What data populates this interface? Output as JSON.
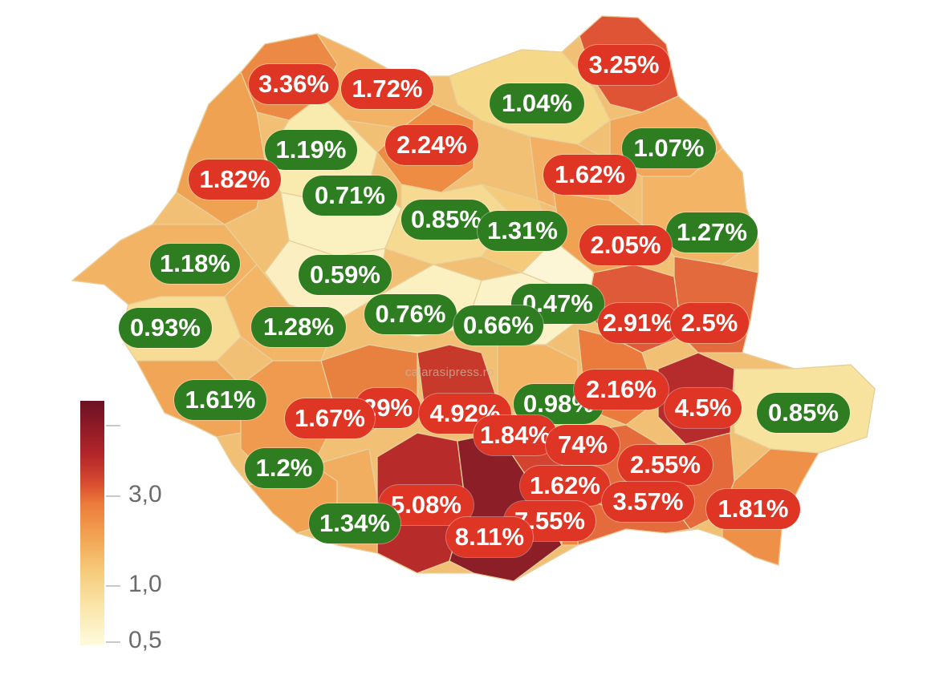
{
  "watermark": "calarasipress.ro",
  "legend": {
    "ticks": [
      "3,0",
      "1,0",
      "0,5"
    ],
    "colors": [
      "#fffbdf",
      "#f6cb7c",
      "#ec7a3b",
      "#b3262a",
      "#6b1224"
    ]
  },
  "counties": [
    {
      "label": "3.36%",
      "value": 3.36,
      "status": "red"
    },
    {
      "label": "1.72%",
      "value": 1.72,
      "status": "red"
    },
    {
      "label": "3.25%",
      "value": 3.25,
      "status": "red"
    },
    {
      "label": "1.04%",
      "value": 1.04,
      "status": "green"
    },
    {
      "label": "1.19%",
      "value": 1.19,
      "status": "green"
    },
    {
      "label": "2.24%",
      "value": 2.24,
      "status": "red"
    },
    {
      "label": "1.07%",
      "value": 1.07,
      "status": "green"
    },
    {
      "label": "1.82%",
      "value": 1.82,
      "status": "red"
    },
    {
      "label": "0.71%",
      "value": 0.71,
      "status": "green"
    },
    {
      "label": "1.62%",
      "value": 1.62,
      "status": "red"
    },
    {
      "label": "0.85%",
      "value": 0.85,
      "status": "green"
    },
    {
      "label": "1.31%",
      "value": 1.31,
      "status": "green"
    },
    {
      "label": "1.27%",
      "value": 1.27,
      "status": "green"
    },
    {
      "label": "2.05%",
      "value": 2.05,
      "status": "red"
    },
    {
      "label": "1.18%",
      "value": 1.18,
      "status": "green"
    },
    {
      "label": "0.59%",
      "value": 0.59,
      "status": "green"
    },
    {
      "label": "0.47%",
      "value": 0.47,
      "status": "green"
    },
    {
      "label": "0.93%",
      "value": 0.93,
      "status": "green"
    },
    {
      "label": "1.28%",
      "value": 1.28,
      "status": "green"
    },
    {
      "label": "0.76%",
      "value": 0.76,
      "status": "green"
    },
    {
      "label": "0.66%",
      "value": 0.66,
      "status": "green"
    },
    {
      "label": "2.91%",
      "value": 2.91,
      "status": "red"
    },
    {
      "label": "2.5%",
      "value": 2.5,
      "status": "red"
    },
    {
      "label": "1.61%",
      "value": 1.61,
      "status": "green"
    },
    {
      "label": "29%",
      "value": null,
      "status": "red"
    },
    {
      "label": "0.98%",
      "value": 0.98,
      "status": "green"
    },
    {
      "label": "2.16%",
      "value": 2.16,
      "status": "red"
    },
    {
      "label": "4.5%",
      "value": 4.5,
      "status": "red"
    },
    {
      "label": "0.85%",
      "value": 0.85,
      "status": "green"
    },
    {
      "label": "1.67%",
      "value": 1.67,
      "status": "red"
    },
    {
      "label": "4.92%",
      "value": 4.92,
      "status": "red"
    },
    {
      "label": "1.84%",
      "value": 1.84,
      "status": "red"
    },
    {
      "label": "74%",
      "value": null,
      "status": "red"
    },
    {
      "label": "1.2%",
      "value": 1.2,
      "status": "green"
    },
    {
      "label": "2.55%",
      "value": 2.55,
      "status": "red"
    },
    {
      "label": "1.62%",
      "value": 1.62,
      "status": "red"
    },
    {
      "label": "3.57%",
      "value": 3.57,
      "status": "red"
    },
    {
      "label": "1.81%",
      "value": 1.81,
      "status": "red"
    },
    {
      "label": "5.08%",
      "value": 5.08,
      "status": "red"
    },
    {
      "label": "1.34%",
      "value": 1.34,
      "status": "green"
    },
    {
      "label": "7.55%",
      "value": 7.55,
      "status": "red"
    },
    {
      "label": "8.11%",
      "value": 8.11,
      "status": "red"
    }
  ]
}
